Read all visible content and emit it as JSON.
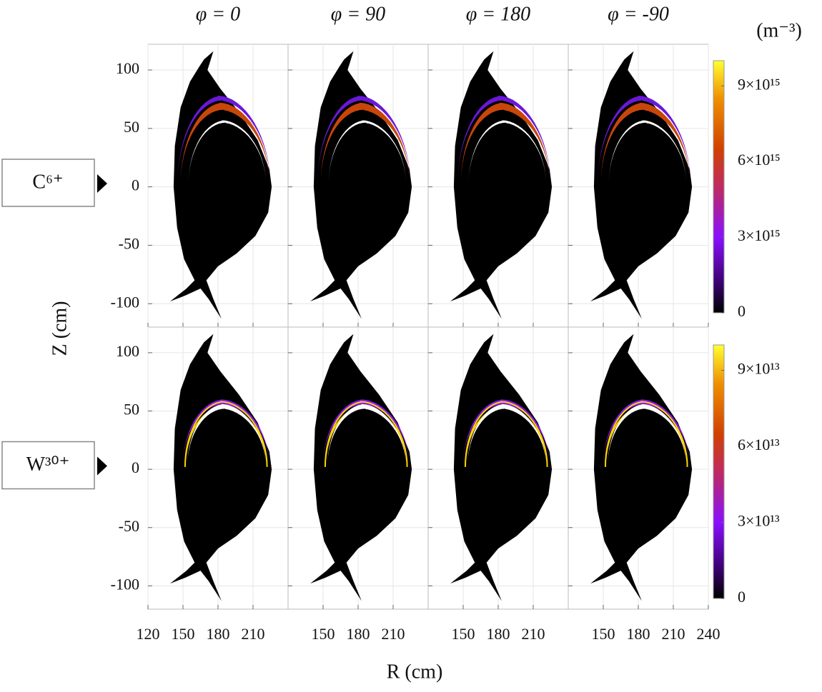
{
  "chart_data": {
    "type": "heatmap-grid",
    "column_titles": [
      "φ = 0",
      "φ = 90",
      "φ = 180",
      "φ = -90"
    ],
    "xlabel": "R (cm)",
    "ylabel": "Z (cm)",
    "colorbar_unit": "(m⁻³)",
    "xlim": [
      120,
      240
    ],
    "ylim": [
      -120,
      122
    ],
    "yticks": [
      -100,
      -50,
      0,
      50,
      100
    ],
    "xticks": [
      [
        120,
        150,
        180,
        210
      ],
      [
        150,
        180,
        210
      ],
      [
        150,
        180,
        210
      ],
      [
        150,
        180,
        210,
        240
      ]
    ],
    "grid": true,
    "rows": [
      {
        "label": "C⁶⁺",
        "colorbar_lim": [
          0,
          1e+16
        ],
        "colorbar_ticks": [
          0,
          {
            "value": 3000000000000000.0,
            "label": "3×10¹⁵"
          },
          {
            "value": 6000000000000000.0,
            "label": "6×10¹⁵"
          },
          {
            "value": 9000000000000000.0,
            "label": "9×10¹⁵"
          }
        ]
      },
      {
        "label": "W³⁰⁺",
        "colorbar_lim": [
          0,
          100000000000000.0
        ],
        "colorbar_ticks": [
          0,
          {
            "value": 30000000000000.0,
            "label": "3×10¹³"
          },
          {
            "value": 60000000000000.0,
            "label": "6×10¹³"
          },
          {
            "value": 90000000000000.0,
            "label": "9×10¹³"
          }
        ]
      }
    ]
  }
}
